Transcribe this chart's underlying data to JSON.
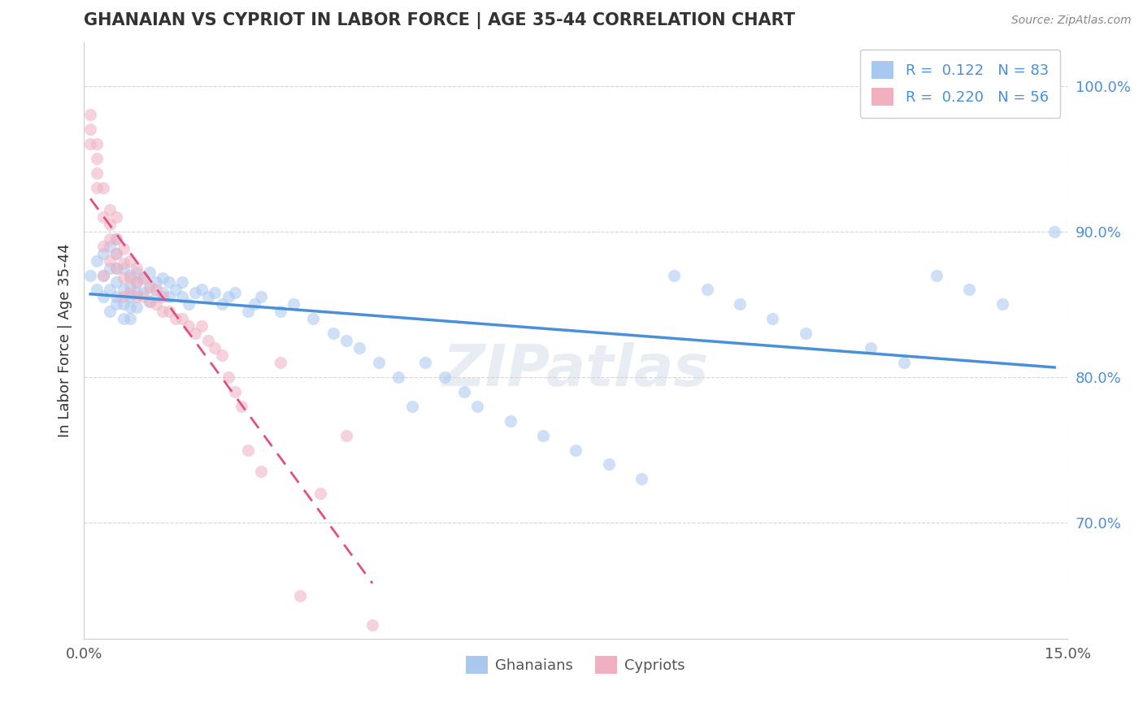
{
  "title": "GHANAIAN VS CYPRIOT IN LABOR FORCE | AGE 35-44 CORRELATION CHART",
  "source_text": "Source: ZipAtlas.com",
  "xlabel": "",
  "ylabel": "In Labor Force | Age 35-44",
  "xlim": [
    0.0,
    0.15
  ],
  "ylim": [
    0.62,
    1.03
  ],
  "yticks": [
    0.7,
    0.8,
    0.9,
    1.0
  ],
  "ytick_labels": [
    "70.0%",
    "80.0%",
    "90.0%",
    "100.0%"
  ],
  "xticks": [
    0.0,
    0.15
  ],
  "xtick_labels": [
    "0.0%",
    "15.0%"
  ],
  "legend_entries": [
    {
      "label": "R =  0.122   N = 83",
      "color": "#a8c8f0"
    },
    {
      "label": "R =  0.220   N = 56",
      "color": "#f0a8b8"
    }
  ],
  "legend_bottom": [
    "Ghanaians",
    "Cypriots"
  ],
  "ghanaian_R": 0.122,
  "ghanaian_N": 83,
  "cypriot_R": 0.22,
  "cypriot_N": 56,
  "watermark": "ZIPatlas",
  "background_color": "#ffffff",
  "dot_color_ghanaian": "#a8c8f0",
  "dot_color_cypriot": "#f0b0c0",
  "line_color_ghanaian": "#4a90d9",
  "line_color_cypriot": "#e05080",
  "dot_size": 120,
  "dot_alpha": 0.55,
  "ghanaian_x": [
    0.001,
    0.002,
    0.002,
    0.003,
    0.003,
    0.003,
    0.004,
    0.004,
    0.004,
    0.004,
    0.005,
    0.005,
    0.005,
    0.005,
    0.005,
    0.005,
    0.006,
    0.006,
    0.006,
    0.006,
    0.007,
    0.007,
    0.007,
    0.007,
    0.007,
    0.008,
    0.008,
    0.008,
    0.008,
    0.009,
    0.009,
    0.01,
    0.01,
    0.01,
    0.011,
    0.011,
    0.012,
    0.012,
    0.013,
    0.013,
    0.014,
    0.015,
    0.015,
    0.016,
    0.017,
    0.018,
    0.019,
    0.02,
    0.021,
    0.022,
    0.023,
    0.025,
    0.026,
    0.027,
    0.03,
    0.032,
    0.035,
    0.038,
    0.04,
    0.042,
    0.045,
    0.048,
    0.05,
    0.052,
    0.055,
    0.058,
    0.06,
    0.065,
    0.07,
    0.075,
    0.08,
    0.085,
    0.09,
    0.095,
    0.1,
    0.105,
    0.11,
    0.12,
    0.125,
    0.13,
    0.135,
    0.14,
    0.148
  ],
  "ghanaian_y": [
    0.87,
    0.86,
    0.88,
    0.855,
    0.87,
    0.885,
    0.845,
    0.86,
    0.875,
    0.89,
    0.85,
    0.855,
    0.865,
    0.875,
    0.885,
    0.895,
    0.84,
    0.85,
    0.86,
    0.875,
    0.84,
    0.848,
    0.855,
    0.862,
    0.87,
    0.848,
    0.858,
    0.865,
    0.872,
    0.858,
    0.868,
    0.852,
    0.862,
    0.872,
    0.855,
    0.865,
    0.858,
    0.868,
    0.855,
    0.865,
    0.86,
    0.855,
    0.865,
    0.85,
    0.858,
    0.86,
    0.855,
    0.858,
    0.85,
    0.855,
    0.858,
    0.845,
    0.85,
    0.855,
    0.845,
    0.85,
    0.84,
    0.83,
    0.825,
    0.82,
    0.81,
    0.8,
    0.78,
    0.81,
    0.8,
    0.79,
    0.78,
    0.77,
    0.76,
    0.75,
    0.74,
    0.73,
    0.87,
    0.86,
    0.85,
    0.84,
    0.83,
    0.82,
    0.81,
    0.87,
    0.86,
    0.85,
    0.9
  ],
  "cypriot_x": [
    0.001,
    0.001,
    0.001,
    0.002,
    0.002,
    0.002,
    0.002,
    0.003,
    0.003,
    0.003,
    0.003,
    0.004,
    0.004,
    0.004,
    0.004,
    0.005,
    0.005,
    0.005,
    0.005,
    0.006,
    0.006,
    0.006,
    0.006,
    0.007,
    0.007,
    0.007,
    0.008,
    0.008,
    0.008,
    0.009,
    0.009,
    0.01,
    0.01,
    0.011,
    0.011,
    0.012,
    0.012,
    0.013,
    0.014,
    0.015,
    0.016,
    0.017,
    0.018,
    0.019,
    0.02,
    0.021,
    0.022,
    0.023,
    0.024,
    0.025,
    0.027,
    0.03,
    0.033,
    0.036,
    0.04,
    0.044
  ],
  "cypriot_y": [
    0.96,
    0.97,
    0.98,
    0.93,
    0.94,
    0.95,
    0.96,
    0.87,
    0.89,
    0.91,
    0.93,
    0.88,
    0.895,
    0.905,
    0.915,
    0.875,
    0.885,
    0.895,
    0.91,
    0.855,
    0.868,
    0.878,
    0.888,
    0.858,
    0.868,
    0.88,
    0.855,
    0.865,
    0.875,
    0.855,
    0.868,
    0.852,
    0.862,
    0.85,
    0.86,
    0.845,
    0.855,
    0.845,
    0.84,
    0.84,
    0.835,
    0.83,
    0.835,
    0.825,
    0.82,
    0.815,
    0.8,
    0.79,
    0.78,
    0.75,
    0.735,
    0.81,
    0.65,
    0.72,
    0.76,
    0.63
  ]
}
